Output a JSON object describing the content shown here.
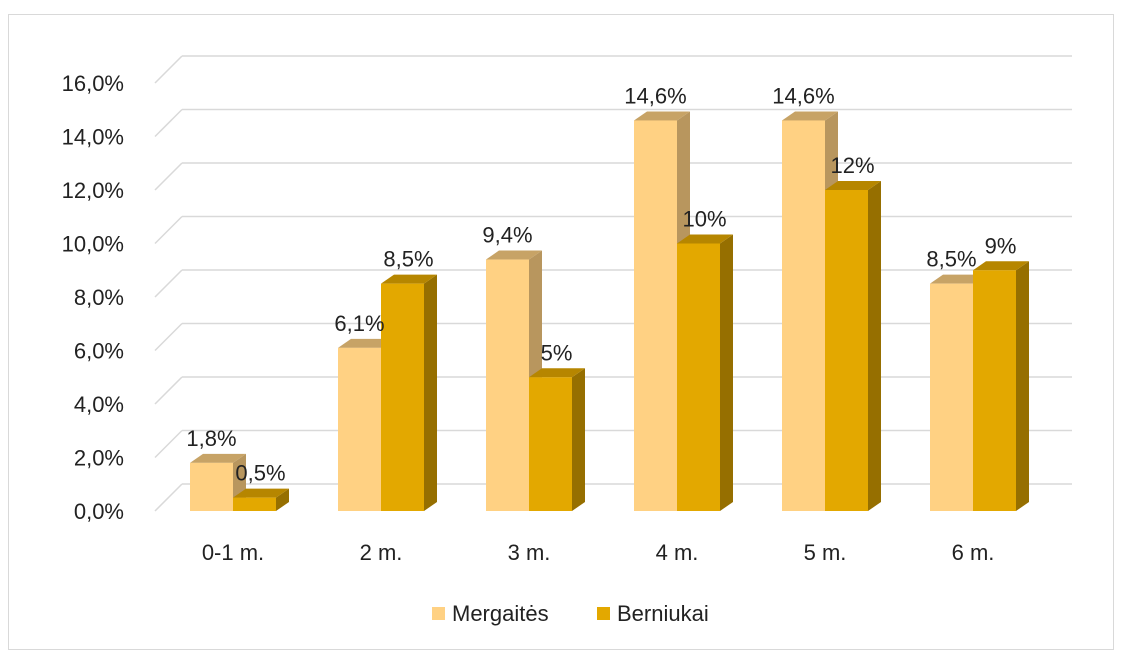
{
  "chart_data": {
    "type": "bar",
    "categories": [
      "0-1 m.",
      "2 m.",
      "3 m.",
      "4 m.",
      "5 m.",
      "6 m."
    ],
    "series": [
      {
        "name": "Mergaitės",
        "values": [
          1.8,
          6.1,
          9.4,
          14.6,
          14.6,
          8.5
        ],
        "labels": [
          "1,8%",
          "6,1%",
          "9,4%",
          "14,6%",
          "14,6%",
          "8,5%"
        ],
        "color": "#FFD183"
      },
      {
        "name": "Berniukai",
        "values": [
          0.5,
          8.5,
          5,
          10,
          12,
          9
        ],
        "labels": [
          "0,5%",
          "8,5%",
          "5%",
          "10%",
          "12%",
          "9%"
        ],
        "color": "#E3A800"
      }
    ],
    "y_ticks": [
      "0,0%",
      "2,0%",
      "4,0%",
      "6,0%",
      "8,0%",
      "10,0%",
      "12,0%",
      "14,0%",
      "16,0%"
    ],
    "ylim": [
      0,
      16
    ],
    "grid": true,
    "legend_position": "bottom",
    "style": "3d-clustered-column"
  }
}
